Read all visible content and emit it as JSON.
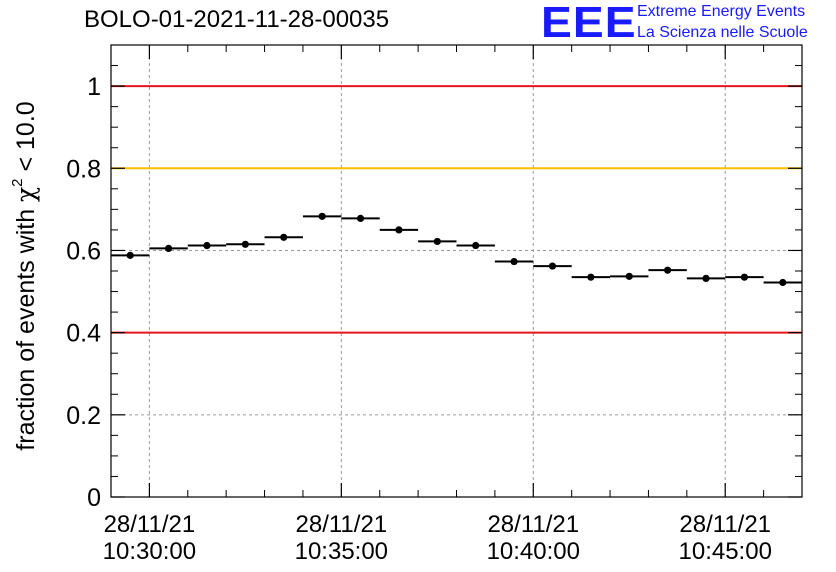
{
  "header": {
    "run_title": "BOLO-01-2021-11-28-00035",
    "logo_mark": "EEE",
    "logo_line1": "Extreme Energy Events",
    "logo_line2": "La Scienza nelle Scuole"
  },
  "colors": {
    "accent_blue": "#1a1aff",
    "limit_red": "#e8141c",
    "limit_orange": "#ffbf00",
    "grid": "#9a9a9a"
  },
  "chart_data": {
    "type": "scatter",
    "ylabel_main": "fraction of events with ",
    "ylabel_chi": "χ",
    "ylabel_sup": "2",
    "ylabel_tail": " < 10.0",
    "xlabel": "",
    "xlim": [
      "2021-11-28T10:29:00",
      "2021-11-28T10:47:00"
    ],
    "ylim": [
      0,
      1.1
    ],
    "y_ticks": [
      0,
      0.2,
      0.4,
      0.6,
      0.8,
      1
    ],
    "y_tick_labels": [
      "0",
      "0.2",
      "0.4",
      "0.6",
      "0.8",
      "1"
    ],
    "x_ticks": [
      {
        "time": "2021-11-28T10:30:00",
        "line1": "28/11/21",
        "line2": "10:30:00"
      },
      {
        "time": "2021-11-28T10:35:00",
        "line1": "28/11/21",
        "line2": "10:35:00"
      },
      {
        "time": "2021-11-28T10:40:00",
        "line1": "28/11/21",
        "line2": "10:40:00"
      },
      {
        "time": "2021-11-28T10:45:00",
        "line1": "28/11/21",
        "line2": "10:45:00"
      }
    ],
    "grid": true,
    "reference_lines": [
      {
        "y": 1.0,
        "color": "#e8141c"
      },
      {
        "y": 0.8,
        "color": "#ffbf00"
      },
      {
        "y": 0.4,
        "color": "#e8141c"
      }
    ],
    "series": [
      {
        "points": [
          {
            "start": "2021-11-28T10:29:00",
            "end": "2021-11-28T10:30:00",
            "y": 0.588
          },
          {
            "start": "2021-11-28T10:30:00",
            "end": "2021-11-28T10:31:00",
            "y": 0.605
          },
          {
            "start": "2021-11-28T10:31:00",
            "end": "2021-11-28T10:32:00",
            "y": 0.612
          },
          {
            "start": "2021-11-28T10:32:00",
            "end": "2021-11-28T10:33:00",
            "y": 0.615
          },
          {
            "start": "2021-11-28T10:33:00",
            "end": "2021-11-28T10:34:00",
            "y": 0.632
          },
          {
            "start": "2021-11-28T10:34:00",
            "end": "2021-11-28T10:35:00",
            "y": 0.683
          },
          {
            "start": "2021-11-28T10:35:00",
            "end": "2021-11-28T10:36:00",
            "y": 0.678
          },
          {
            "start": "2021-11-28T10:36:00",
            "end": "2021-11-28T10:37:00",
            "y": 0.65
          },
          {
            "start": "2021-11-28T10:37:00",
            "end": "2021-11-28T10:38:00",
            "y": 0.622
          },
          {
            "start": "2021-11-28T10:38:00",
            "end": "2021-11-28T10:39:00",
            "y": 0.612
          },
          {
            "start": "2021-11-28T10:39:00",
            "end": "2021-11-28T10:40:00",
            "y": 0.573
          },
          {
            "start": "2021-11-28T10:40:00",
            "end": "2021-11-28T10:41:00",
            "y": 0.562
          },
          {
            "start": "2021-11-28T10:41:00",
            "end": "2021-11-28T10:42:00",
            "y": 0.535
          },
          {
            "start": "2021-11-28T10:42:00",
            "end": "2021-11-28T10:43:00",
            "y": 0.537
          },
          {
            "start": "2021-11-28T10:43:00",
            "end": "2021-11-28T10:44:00",
            "y": 0.552
          },
          {
            "start": "2021-11-28T10:44:00",
            "end": "2021-11-28T10:45:00",
            "y": 0.532
          },
          {
            "start": "2021-11-28T10:45:00",
            "end": "2021-11-28T10:46:00",
            "y": 0.535
          },
          {
            "start": "2021-11-28T10:46:00",
            "end": "2021-11-28T10:47:00",
            "y": 0.522
          }
        ]
      }
    ]
  }
}
